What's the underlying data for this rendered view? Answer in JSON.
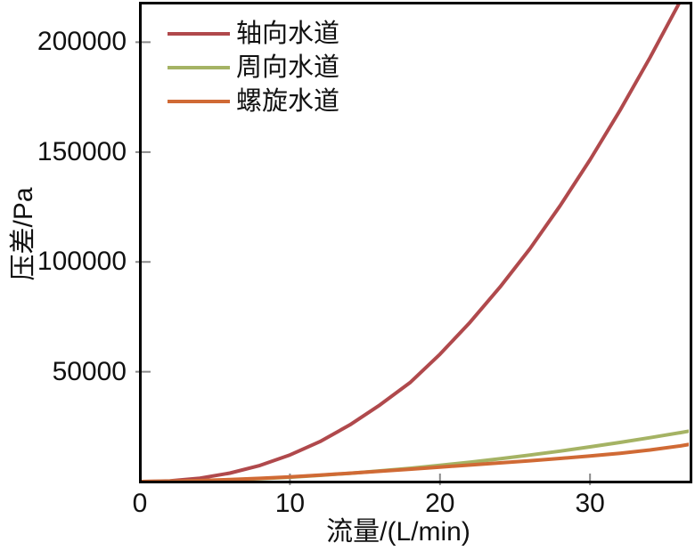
{
  "chart_data": {
    "type": "line",
    "title": "",
    "xlabel": "流量/(L/min)",
    "ylabel": "压差/Pa",
    "xlim": [
      0,
      36.7
    ],
    "ylim": [
      0,
      218000
    ],
    "x_ticks": [
      0,
      10,
      20,
      30
    ],
    "y_ticks": [
      50000,
      100000,
      150000,
      200000
    ],
    "grid": false,
    "legend_position": "top-left-inside",
    "background_color": "#ffffff",
    "axis_color": "#000000",
    "tick_color": "#8a8a8a",
    "text_color": "#111111",
    "x": [
      0,
      2,
      4,
      6,
      8,
      10,
      12,
      14,
      16,
      18,
      20,
      22,
      24,
      26,
      28,
      30,
      32,
      34,
      36,
      36.7
    ],
    "series": [
      {
        "id": "axial-channel",
        "name": "轴向水道",
        "color": "#b0494c",
        "values": [
          0,
          320,
          1540,
          3830,
          7320,
          12100,
          18200,
          25800,
          34900,
          45000,
          58000,
          72500,
          88500,
          106000,
          125500,
          146500,
          169000,
          193000,
          218500,
          228000
        ]
      },
      {
        "id": "circumferential-channel",
        "name": "周向水道",
        "color": "#a5b364",
        "values": [
          0,
          100,
          360,
          770,
          1320,
          2000,
          2820,
          3770,
          4850,
          6050,
          7370,
          8820,
          10380,
          12070,
          13870,
          15800,
          17830,
          19980,
          22250,
          23100
        ]
      },
      {
        "id": "spiral-channel",
        "name": "螺旋水道",
        "color": "#d06a35",
        "values": [
          0,
          130,
          430,
          880,
          1460,
          2100,
          2900,
          3800,
          4700,
          5650,
          6600,
          7550,
          8500,
          9500,
          10550,
          11650,
          12900,
          14400,
          16200,
          17000
        ]
      }
    ]
  }
}
